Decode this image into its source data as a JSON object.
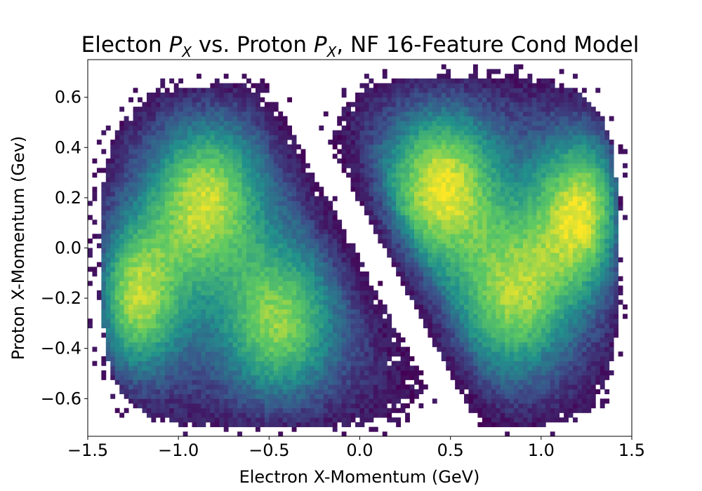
{
  "chart_data": {
    "type": "heatmap",
    "title": {
      "part1": "Electon ",
      "var1": "P",
      "sub1": "X",
      "part2": " vs. Proton ",
      "var2": "P",
      "sub2": "X",
      "part3": ", NF 16-Feature Cond Model"
    },
    "xlabel": "Electron X-Momentum (GeV)",
    "ylabel": "Proton X-Momentum (Gev)",
    "xlim": [
      -1.5,
      1.5
    ],
    "ylim": [
      -0.75,
      0.75
    ],
    "x_ticks": [
      {
        "value": -1.5,
        "label": "−1.5"
      },
      {
        "value": -1.0,
        "label": "−1.0"
      },
      {
        "value": -0.5,
        "label": "−0.5"
      },
      {
        "value": 0.0,
        "label": "0.0"
      },
      {
        "value": 0.5,
        "label": "0.5"
      },
      {
        "value": 1.0,
        "label": "1.0"
      },
      {
        "value": 1.5,
        "label": "1.5"
      }
    ],
    "y_ticks": [
      {
        "value": -0.6,
        "label": "−0.6"
      },
      {
        "value": -0.4,
        "label": "−0.4"
      },
      {
        "value": -0.2,
        "label": "−0.2"
      },
      {
        "value": 0.0,
        "label": "0.0"
      },
      {
        "value": 0.2,
        "label": "0.2"
      },
      {
        "value": 0.4,
        "label": "0.4"
      },
      {
        "value": 0.6,
        "label": "0.6"
      }
    ],
    "grid": false,
    "colormap": [
      "#440154",
      "#3b528b",
      "#21918c",
      "#5ec962",
      "#fde725"
    ],
    "bins": {
      "nx": 120,
      "ny": 80
    },
    "empty_region": "diagonal band from (-0.5, 0.75) to (0.6, -0.75)",
    "lobes": [
      {
        "name": "lower-left lobe",
        "x_range": [
          -1.42,
          0.45
        ],
        "y_range": [
          -0.72,
          0.65
        ],
        "peaks": [
          {
            "x": -1.32,
            "y": -0.2,
            "weight": 1.0
          },
          {
            "x": -0.85,
            "y": 0.2,
            "weight": 0.78
          },
          {
            "x": -0.45,
            "y": -0.3,
            "weight": 0.7
          }
        ]
      },
      {
        "name": "upper-right lobe",
        "x_range": [
          -0.2,
          1.42
        ],
        "y_range": [
          -0.72,
          0.68
        ],
        "peaks": [
          {
            "x": 1.3,
            "y": 0.15,
            "weight": 1.0
          },
          {
            "x": 0.45,
            "y": 0.25,
            "weight": 0.85
          },
          {
            "x": 0.85,
            "y": -0.2,
            "weight": 0.7
          }
        ]
      }
    ]
  }
}
